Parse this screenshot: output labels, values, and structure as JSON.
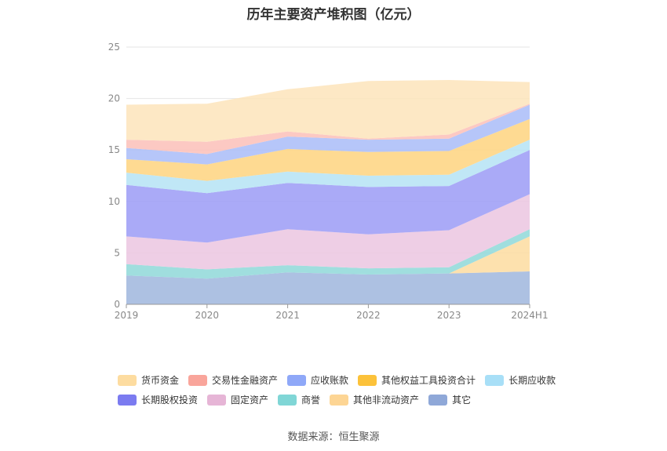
{
  "chart_data": {
    "type": "area",
    "stacked": true,
    "title": "历年主要资产堆积图（亿元）",
    "categories": [
      "2019",
      "2020",
      "2021",
      "2022",
      "2023",
      "2024H1"
    ],
    "ylim": [
      0,
      25
    ],
    "yticks": [
      0,
      5,
      10,
      15,
      20,
      25
    ],
    "grid": true,
    "legend_position": "bottom",
    "series": [
      {
        "name": "其它",
        "color": "#9fb6dd",
        "values": [
          2.8,
          2.5,
          3.1,
          2.9,
          3.0,
          3.2
        ]
      },
      {
        "name": "其他非流动资产",
        "color": "#fddca0",
        "values": [
          0.0,
          0.0,
          0.0,
          0.0,
          0.0,
          3.4
        ]
      },
      {
        "name": "商誉",
        "color": "#8fd8d8",
        "values": [
          1.1,
          0.9,
          0.7,
          0.6,
          0.6,
          0.7
        ]
      },
      {
        "name": "固定资产",
        "color": "#ebc5e0",
        "values": [
          2.7,
          2.6,
          3.5,
          3.3,
          3.6,
          3.4
        ]
      },
      {
        "name": "长期股权投资",
        "color": "#9b9bf6",
        "values": [
          5.0,
          4.8,
          4.5,
          4.6,
          4.3,
          4.3
        ]
      },
      {
        "name": "长期应收款",
        "color": "#b5e3f4",
        "values": [
          1.2,
          1.2,
          1.1,
          1.1,
          1.1,
          1.0
        ]
      },
      {
        "name": "其他权益工具投资合计",
        "color": "#fed47f",
        "values": [
          1.3,
          1.6,
          2.2,
          2.3,
          2.3,
          2.0
        ]
      },
      {
        "name": "应收账款",
        "color": "#a9bcf8",
        "values": [
          1.1,
          1.0,
          1.2,
          1.2,
          1.2,
          1.4
        ]
      },
      {
        "name": "交易性金融资产",
        "color": "#fcc0b9",
        "values": [
          0.8,
          1.2,
          0.5,
          0.1,
          0.4,
          0.1
        ]
      },
      {
        "name": "货币资金",
        "color": "#fde4bb",
        "values": [
          3.4,
          3.7,
          4.1,
          5.6,
          5.3,
          2.1
        ]
      }
    ]
  },
  "legend": {
    "rows": [
      [
        {
          "label": "货币资金",
          "color": "#fddca0"
        },
        {
          "label": "交易性金融资产",
          "color": "#f9a59b"
        },
        {
          "label": "应收账款",
          "color": "#8fa8f8"
        },
        {
          "label": "其他权益工具投资合计",
          "color": "#fcc23a"
        },
        {
          "label": "长期应收款",
          "color": "#a8dff7"
        }
      ],
      [
        {
          "label": "长期股权投资",
          "color": "#7b7bf0"
        },
        {
          "label": "固定资产",
          "color": "#e6b5d6"
        },
        {
          "label": "商誉",
          "color": "#80d6d6"
        },
        {
          "label": "其他非流动资产",
          "color": "#fdd594"
        },
        {
          "label": "其它",
          "color": "#8fa8d8"
        }
      ]
    ]
  },
  "source": "数据来源：恒生聚源"
}
